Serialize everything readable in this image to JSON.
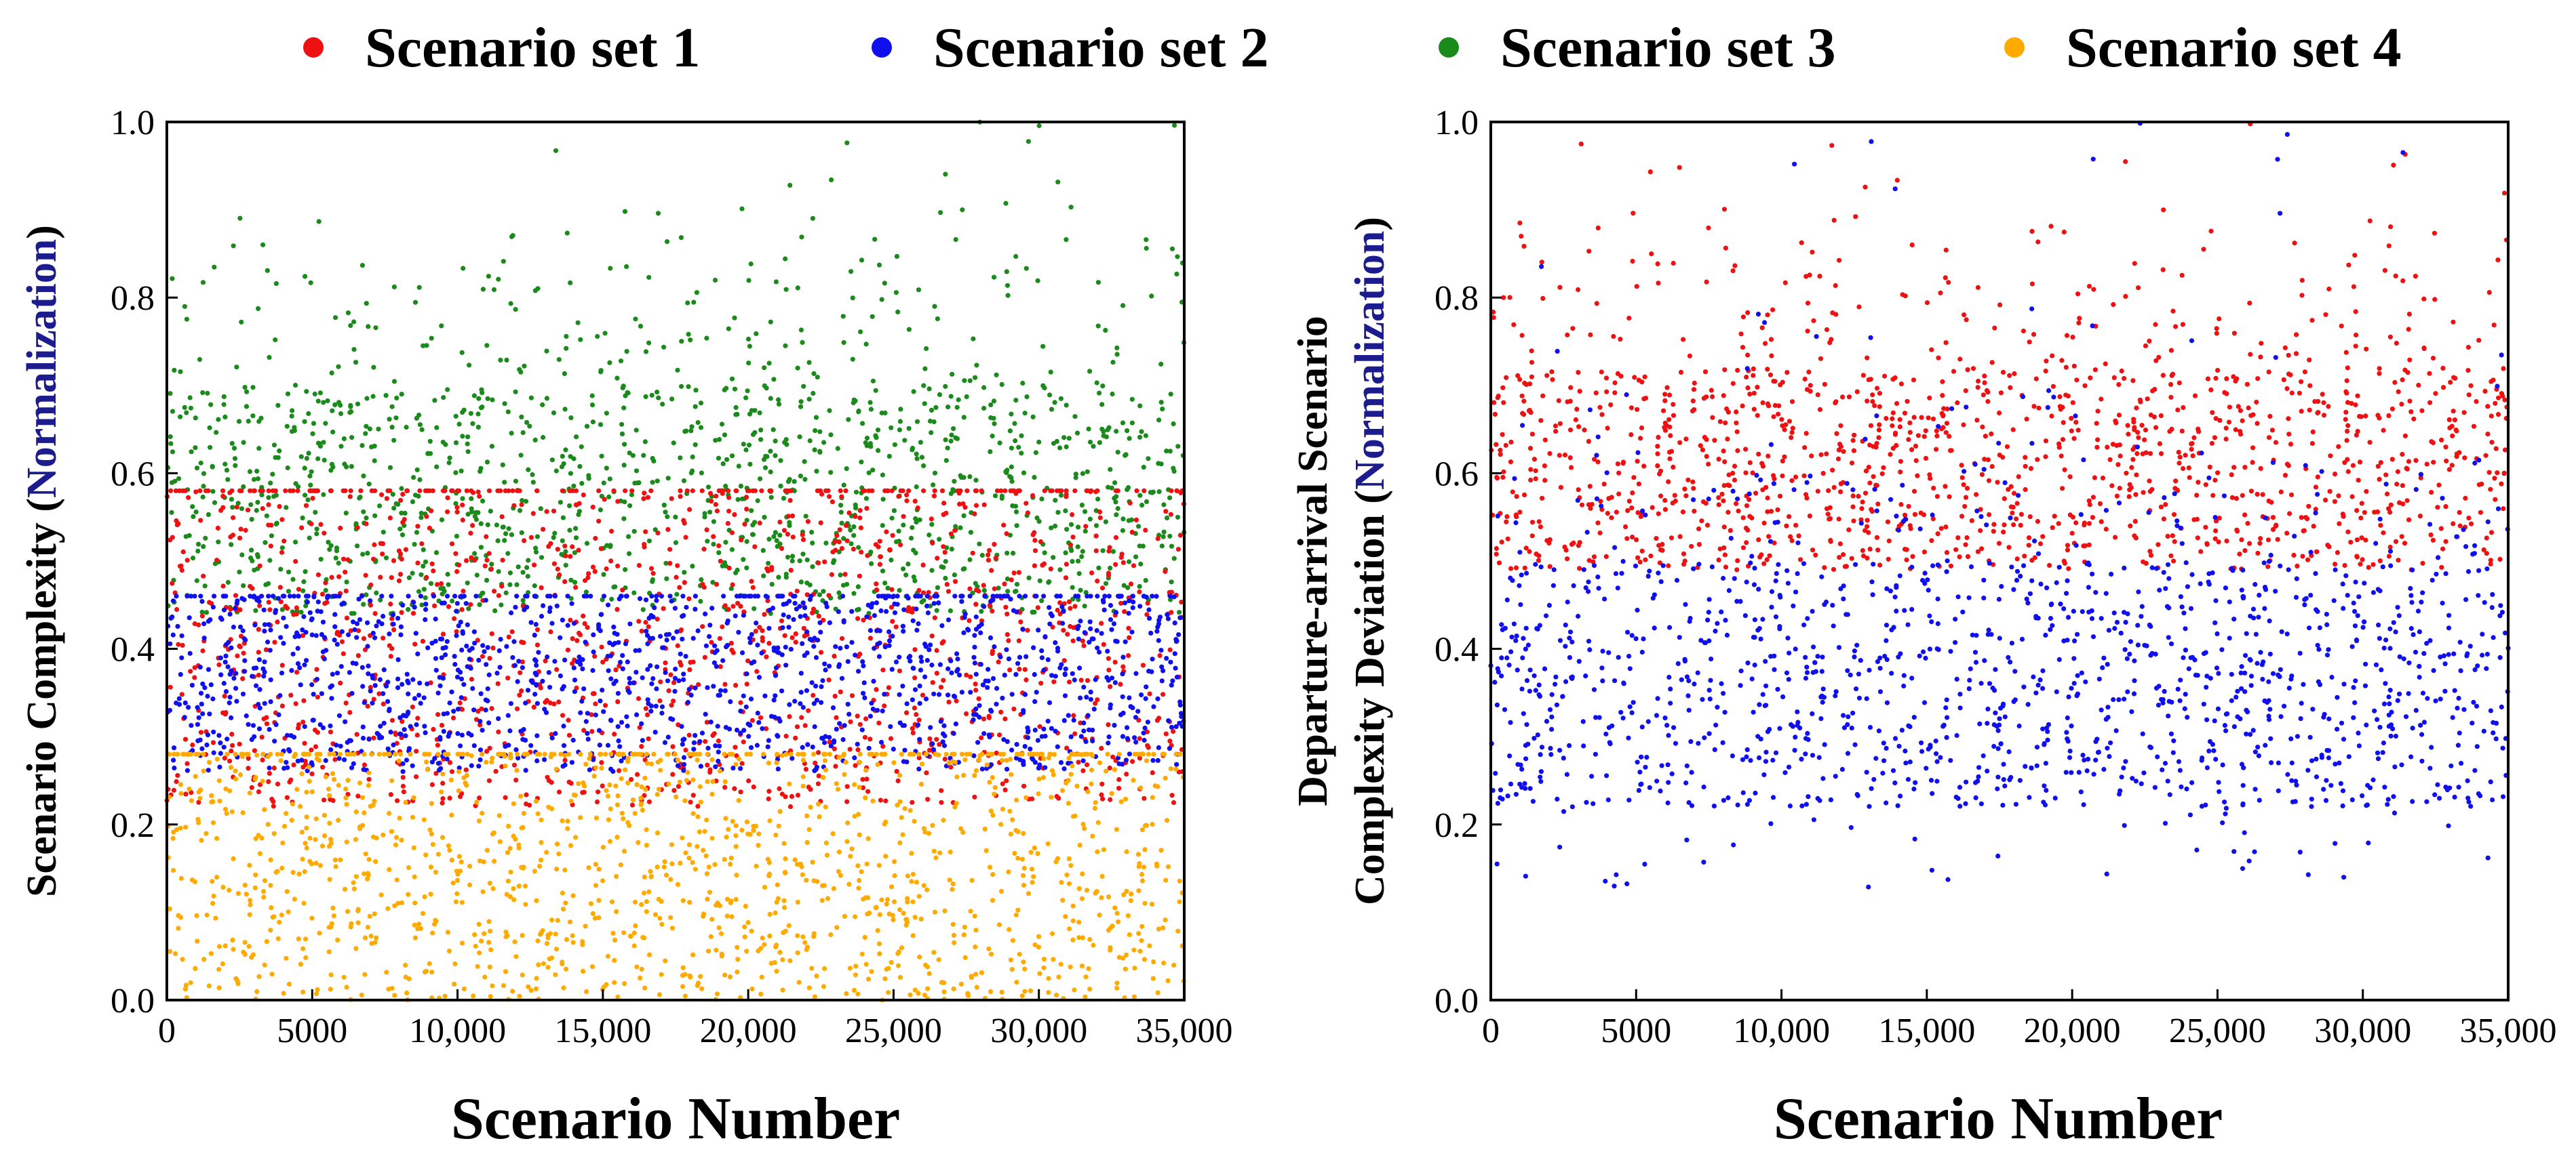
{
  "legend": {
    "items": [
      {
        "label": "Scenario set 1",
        "color": "#ee1111"
      },
      {
        "label": "Scenario set 2",
        "color": "#1010ee"
      },
      {
        "label": "Scenario set 3",
        "color": "#1a8a1a"
      },
      {
        "label": "Scenario set 4",
        "color": "#ffaa00"
      }
    ]
  },
  "chart_data": [
    {
      "type": "scatter",
      "title": "",
      "xlabel": "Scenario Number",
      "ylabel_prefix": "Scenario Complexity (",
      "ylabel_highlight": "Normalization",
      "ylabel_suffix": ")",
      "xlim": [
        0,
        35000
      ],
      "ylim": [
        0.0,
        1.0
      ],
      "xticks": [
        0,
        5000,
        10000,
        15000,
        20000,
        25000,
        30000,
        35000
      ],
      "xtick_labels": [
        "0",
        "5000",
        "10,000",
        "15,000",
        "20,000",
        "25,000",
        "30,000",
        "35,000"
      ],
      "yticks": [
        0.0,
        0.2,
        0.4,
        0.6,
        0.8,
        1.0
      ],
      "ytick_labels": [
        "0.0",
        "0.2",
        "0.4",
        "0.6",
        "0.8",
        "1.0"
      ],
      "series": [
        {
          "name": "Scenario set 3",
          "color": "#1a8a1a",
          "n_points": 35000,
          "y_core_range": [
            0.44,
            0.7
          ],
          "y_max": 1.0
        },
        {
          "name": "Scenario set 1",
          "color": "#ee1111",
          "n_points": 35000,
          "y_core_range": [
            0.22,
            0.56
          ],
          "y_max": 0.58
        },
        {
          "name": "Scenario set 2",
          "color": "#1010ee",
          "n_points": 35000,
          "y_core_range": [
            0.26,
            0.45
          ],
          "y_max": 0.46
        },
        {
          "name": "Scenario set 4",
          "color": "#ffaa00",
          "n_points": 35000,
          "y_core_range": [
            0.0,
            0.27
          ],
          "y_max": 0.28
        }
      ]
    },
    {
      "type": "scatter",
      "title": "",
      "xlabel": "Scenario Number",
      "ylabel_line1": "Departure-arrival Scenario",
      "ylabel_prefix": "Complexity Deviation (",
      "ylabel_highlight": "Normalization",
      "ylabel_suffix": ")",
      "xlim": [
        0,
        35000
      ],
      "ylim": [
        0.0,
        1.0
      ],
      "xticks": [
        0,
        5000,
        10000,
        15000,
        20000,
        25000,
        30000,
        35000
      ],
      "xtick_labels": [
        "0",
        "5000",
        "10,000",
        "15,000",
        "20,000",
        "25,000",
        "30,000",
        "35,000"
      ],
      "yticks": [
        0.0,
        0.2,
        0.4,
        0.6,
        0.8,
        1.0
      ],
      "ytick_labels": [
        "0.0",
        "0.2",
        "0.4",
        "0.6",
        "0.8",
        "1.0"
      ],
      "series": [
        {
          "name": "Scenario set 1",
          "color": "#ee1111",
          "n_points": 35000,
          "y_core_range": [
            0.49,
            0.72
          ],
          "y_max": 1.0
        },
        {
          "name": "Scenario set 2",
          "color": "#1010ee",
          "n_points": 35000,
          "y_core_range": [
            0.22,
            0.5
          ],
          "y_min": 0.12
        }
      ]
    }
  ]
}
